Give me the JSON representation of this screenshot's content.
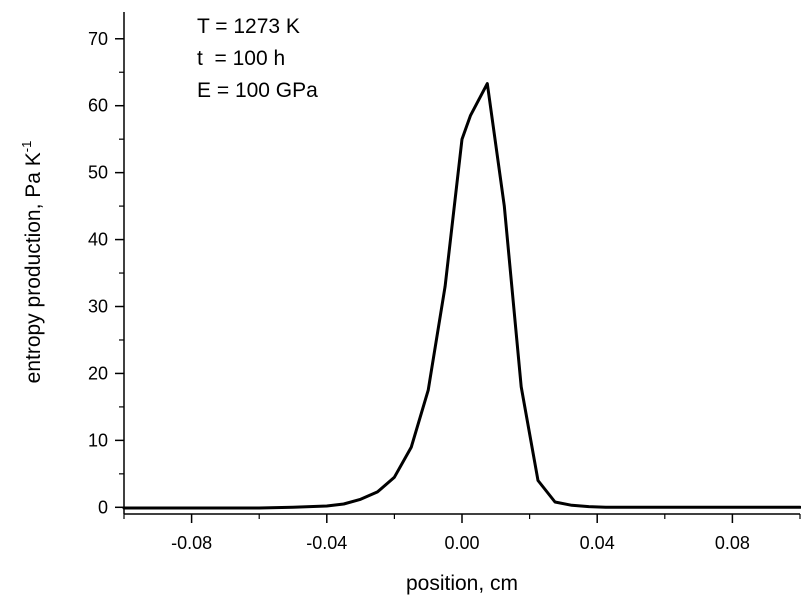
{
  "chart_data": {
    "type": "line",
    "title": "",
    "xlabel": "position, cm",
    "ylabel_main": "entropy production, Pa K",
    "ylabel_sup": "-1",
    "xlim": [
      -0.1,
      0.1
    ],
    "ylim": [
      -1,
      74
    ],
    "x_ticks": [
      -0.08,
      -0.04,
      0.0,
      0.04,
      0.08
    ],
    "x_tick_labels": [
      "-0.08",
      "-0.04",
      "0.00",
      "0.04",
      "0.08"
    ],
    "y_ticks": [
      0,
      10,
      20,
      30,
      40,
      50,
      60,
      70
    ],
    "y_tick_labels": [
      "0",
      "10",
      "20",
      "30",
      "40",
      "50",
      "60",
      "70"
    ],
    "grid": false,
    "annotations": [
      "T = 1273 K",
      "t  = 100 h",
      "E = 100 GPa"
    ],
    "series": [
      {
        "line_color": "#000000",
        "x": [
          -0.1,
          -0.08,
          -0.06,
          -0.05,
          -0.04,
          -0.035,
          -0.03,
          -0.025,
          -0.02,
          -0.015,
          -0.01,
          -0.005,
          0.0,
          0.0025,
          0.0075,
          0.0125,
          0.0175,
          0.0225,
          0.0275,
          0.0325,
          0.0375,
          0.0425,
          0.05,
          0.06,
          0.08,
          0.1
        ],
        "y": [
          -0.1,
          -0.1,
          -0.1,
          0.0,
          0.2,
          0.5,
          1.2,
          2.3,
          4.5,
          9.0,
          17.5,
          33.0,
          55.0,
          58.5,
          63.3,
          45.0,
          18.0,
          4.0,
          0.8,
          0.3,
          0.1,
          0.0,
          0.0,
          0.0,
          0.0,
          0.0
        ]
      }
    ]
  }
}
